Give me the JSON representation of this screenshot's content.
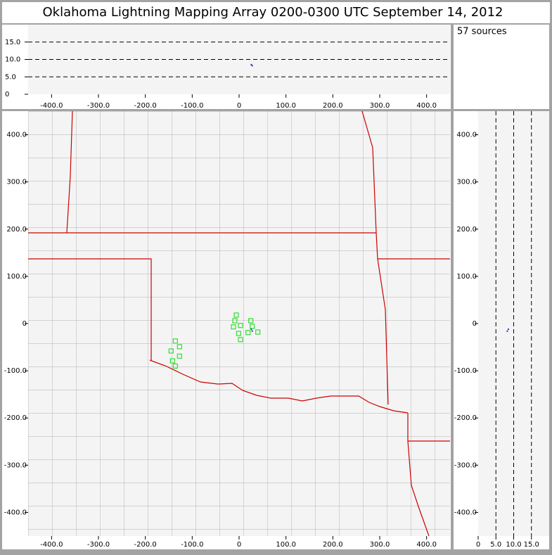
{
  "title": "Oklahoma Lightning Mapping Array   0200-0300 UTC  September 14, 2012",
  "source_count": "57 sources",
  "altitude_view": {
    "xlim": [
      -450,
      450
    ],
    "ylim": [
      0,
      20
    ],
    "grid": true,
    "xticks": [
      {
        "value": -400,
        "label": "-400.0"
      },
      {
        "value": -300,
        "label": "-300.0"
      },
      {
        "value": -200,
        "label": "-200.0"
      },
      {
        "value": -100,
        "label": "-100.0"
      },
      0,
      {
        "value": 100,
        "label": "100.0"
      },
      {
        "value": 200,
        "label": "200.0"
      },
      {
        "value": 300,
        "label": "300.0"
      },
      {
        "value": 400,
        "label": "400.0"
      }
    ],
    "yticks": [
      0,
      {
        "value": 5,
        "label": "5.0"
      },
      {
        "value": 10,
        "label": "10.0"
      },
      {
        "value": 15,
        "label": "15.0"
      }
    ]
  },
  "plan_view": {
    "xlim": [
      -450,
      450
    ],
    "ylim": [
      -450,
      450
    ],
    "grid": false,
    "xticks": [
      {
        "value": -400,
        "label": "-400.0"
      },
      {
        "value": -300,
        "label": "-300.0"
      },
      {
        "value": -200,
        "label": "-200.0"
      },
      {
        "value": -100,
        "label": "-100.0"
      },
      0,
      {
        "value": 100,
        "label": "100.0"
      },
      {
        "value": 200,
        "label": "200.0"
      },
      {
        "value": 300,
        "label": "300.0"
      },
      {
        "value": 400,
        "label": "400.0"
      }
    ],
    "yticks": [
      {
        "value": -400,
        "label": "-400.0"
      },
      {
        "value": -300,
        "label": "-300.0"
      },
      {
        "value": -200,
        "label": "-200.0"
      },
      {
        "value": -100,
        "label": "-100.0"
      },
      0,
      {
        "value": 100,
        "label": "100.0"
      },
      {
        "value": 200,
        "label": "200.0"
      },
      {
        "value": 300,
        "label": "300.0"
      },
      {
        "value": 400,
        "label": "400.0"
      }
    ]
  },
  "side_view": {
    "xlim": [
      0,
      20
    ],
    "ylim": [
      -450,
      450
    ],
    "grid": true,
    "xticks": [
      0,
      {
        "value": 5,
        "label": "5.0"
      },
      {
        "value": 10,
        "label": "10.0"
      },
      {
        "value": 15,
        "label": "15.0"
      }
    ],
    "yticks": [
      {
        "value": -400,
        "label": "-400.0"
      },
      {
        "value": -300,
        "label": "-300.0"
      },
      {
        "value": -200,
        "label": "-200.0"
      },
      {
        "value": -100,
        "label": "-100.0"
      },
      0,
      {
        "value": 100,
        "label": "100.0"
      },
      {
        "value": 200,
        "label": "200.0"
      },
      {
        "value": 300,
        "label": "300.0"
      },
      {
        "value": 400,
        "label": "400.0"
      }
    ]
  },
  "stations": {
    "color": "#33dd33",
    "x": [
      -6,
      -9,
      3,
      -12,
      25,
      28,
      19,
      40,
      -1,
      3,
      -136,
      -127,
      -145,
      -127,
      -142,
      -136
    ],
    "y": [
      18,
      6,
      -4,
      -7,
      6,
      -6,
      -19,
      -18,
      -21,
      -34,
      -37,
      -49,
      -58,
      -69,
      -79,
      -90
    ]
  },
  "sources": {
    "color": "#2233cc",
    "x": [
      26,
      28
    ],
    "y": [
      -12,
      -16
    ],
    "alt": [
      8.5,
      8.2
    ]
  }
}
